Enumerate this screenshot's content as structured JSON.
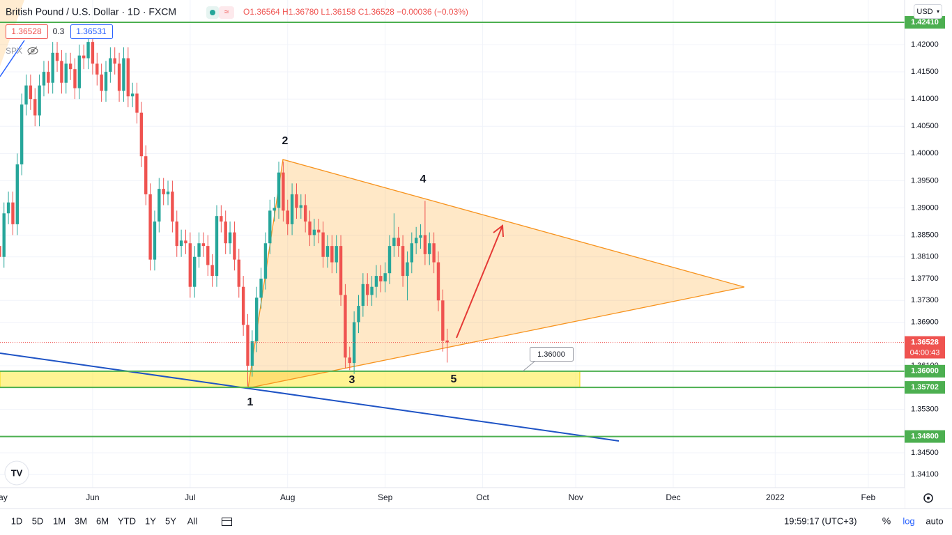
{
  "header": {
    "title": "British Pound / U.S. Dollar · 1D · FXCM",
    "ohlc": "O1.36564 H1.36780 L1.36158 C1.36528 −0.00036 (−0.03%)",
    "bid": "1.36528",
    "spread": "0.3",
    "ask": "1.36531",
    "indicator": "SPX",
    "currency": "USD"
  },
  "chart_data": {
    "type": "candlestick",
    "up_color": "#26a69a",
    "down_color": "#ef5350",
    "grid": true,
    "log_scale": false,
    "xlim": [
      0.1,
      204.2
    ],
    "xticks": [
      {
        "value": 0,
        "label": "May"
      },
      {
        "value": 21,
        "label": "Jun"
      },
      {
        "value": 43,
        "label": "Jul"
      },
      {
        "value": 65,
        "label": "Aug"
      },
      {
        "value": 87,
        "label": "Sep"
      },
      {
        "value": 109,
        "label": "Oct"
      },
      {
        "value": 130,
        "label": "Nov"
      },
      {
        "value": 152,
        "label": "Dec"
      },
      {
        "value": 175,
        "label": "2022"
      },
      {
        "value": 196,
        "label": "Feb"
      }
    ],
    "ylim": [
      1.3386,
      1.4282
    ],
    "yticks": [
      {
        "value": 1.42,
        "label": "1.42000"
      },
      {
        "value": 1.415,
        "label": "1.41500"
      },
      {
        "value": 1.41,
        "label": "1.41000"
      },
      {
        "value": 1.405,
        "label": "1.40500"
      },
      {
        "value": 1.4,
        "label": "1.40000"
      },
      {
        "value": 1.395,
        "label": "1.39500"
      },
      {
        "value": 1.39,
        "label": "1.39000"
      },
      {
        "value": 1.385,
        "label": "1.38500"
      },
      {
        "value": 1.381,
        "label": "1.38100"
      },
      {
        "value": 1.377,
        "label": "1.37700"
      },
      {
        "value": 1.373,
        "label": "1.37300"
      },
      {
        "value": 1.369,
        "label": "1.36900"
      },
      {
        "value": 1.361,
        "label": "1.36100"
      },
      {
        "value": 1.353,
        "label": "1.35300"
      },
      {
        "value": 1.345,
        "label": "1.34500"
      },
      {
        "value": 1.341,
        "label": "1.34100"
      }
    ],
    "candles": [
      [
        1.383,
        1.385,
        1.379,
        1.381
      ],
      [
        1.381,
        1.391,
        1.379,
        1.389
      ],
      [
        1.389,
        1.393,
        1.387,
        1.391
      ],
      [
        1.391,
        1.393,
        1.385,
        1.387
      ],
      [
        1.387,
        1.4,
        1.385,
        1.398
      ],
      [
        1.398,
        1.411,
        1.396,
        1.409
      ],
      [
        1.409,
        1.4145,
        1.407,
        1.4125
      ],
      [
        1.4125,
        1.4145,
        1.408,
        1.41
      ],
      [
        1.41,
        1.412,
        1.405,
        1.407
      ],
      [
        1.407,
        1.4145,
        1.405,
        1.4125
      ],
      [
        1.4125,
        1.417,
        1.4105,
        1.415
      ],
      [
        1.415,
        1.417,
        1.411,
        1.413
      ],
      [
        1.413,
        1.4205,
        1.411,
        1.4185
      ],
      [
        1.4185,
        1.4205,
        1.415,
        1.417
      ],
      [
        1.417,
        1.419,
        1.411,
        1.413
      ],
      [
        1.413,
        1.4185,
        1.411,
        1.4165
      ],
      [
        1.4165,
        1.4185,
        1.4135,
        1.4155
      ],
      [
        1.4155,
        1.4175,
        1.41,
        1.412
      ],
      [
        1.412,
        1.42,
        1.41,
        1.418
      ],
      [
        1.418,
        1.42,
        1.4155,
        1.4175
      ],
      [
        1.4175,
        1.422,
        1.4155,
        1.4205
      ],
      [
        1.4205,
        1.4225,
        1.4145,
        1.4165
      ],
      [
        1.4165,
        1.4185,
        1.4125,
        1.4145
      ],
      [
        1.4145,
        1.4165,
        1.4095,
        1.4115
      ],
      [
        1.4115,
        1.417,
        1.4095,
        1.415
      ],
      [
        1.415,
        1.4195,
        1.413,
        1.4175
      ],
      [
        1.4175,
        1.4195,
        1.4145,
        1.4165
      ],
      [
        1.4165,
        1.4185,
        1.4095,
        1.4115
      ],
      [
        1.4115,
        1.4195,
        1.4095,
        1.4175
      ],
      [
        1.4175,
        1.4195,
        1.4085,
        1.4105
      ],
      [
        1.4105,
        1.413,
        1.4085,
        1.411
      ],
      [
        1.411,
        1.413,
        1.4055,
        1.4075
      ],
      [
        1.4075,
        1.4095,
        1.3975,
        1.3995
      ],
      [
        1.3995,
        1.4015,
        1.3905,
        1.3925
      ],
      [
        1.3925,
        1.3945,
        1.3785,
        1.3805
      ],
      [
        1.3805,
        1.3895,
        1.3785,
        1.3875
      ],
      [
        1.3875,
        1.3955,
        1.3855,
        1.3935
      ],
      [
        1.3935,
        1.3955,
        1.3905,
        1.3925
      ],
      [
        1.3925,
        1.395,
        1.3905,
        1.393
      ],
      [
        1.393,
        1.395,
        1.3855,
        1.3875
      ],
      [
        1.3875,
        1.3895,
        1.381,
        1.383
      ],
      [
        1.383,
        1.386,
        1.381,
        1.384
      ],
      [
        1.384,
        1.386,
        1.3815,
        1.3835
      ],
      [
        1.3835,
        1.3855,
        1.3735,
        1.3755
      ],
      [
        1.3755,
        1.383,
        1.3735,
        1.381
      ],
      [
        1.381,
        1.3855,
        1.379,
        1.3835
      ],
      [
        1.3835,
        1.3855,
        1.381,
        1.383
      ],
      [
        1.383,
        1.385,
        1.3775,
        1.3795
      ],
      [
        1.3795,
        1.3815,
        1.3755,
        1.3775
      ],
      [
        1.3775,
        1.3905,
        1.3755,
        1.3885
      ],
      [
        1.3885,
        1.3905,
        1.3855,
        1.3875
      ],
      [
        1.3875,
        1.3895,
        1.3815,
        1.3835
      ],
      [
        1.3835,
        1.3875,
        1.3815,
        1.3855
      ],
      [
        1.3855,
        1.3875,
        1.3785,
        1.3805
      ],
      [
        1.3805,
        1.3825,
        1.3735,
        1.3755
      ],
      [
        1.3755,
        1.3775,
        1.3665,
        1.3685
      ],
      [
        1.3685,
        1.3705,
        1.3572,
        1.361
      ],
      [
        1.361,
        1.3675,
        1.359,
        1.3655
      ],
      [
        1.3655,
        1.3755,
        1.3635,
        1.3735
      ],
      [
        1.3735,
        1.379,
        1.3715,
        1.377
      ],
      [
        1.377,
        1.3855,
        1.375,
        1.3835
      ],
      [
        1.3835,
        1.3915,
        1.3815,
        1.3895
      ],
      [
        1.3895,
        1.392,
        1.3875,
        1.39
      ],
      [
        1.39,
        1.3985,
        1.388,
        1.3965
      ],
      [
        1.3965,
        1.3985,
        1.3875,
        1.3895
      ],
      [
        1.3895,
        1.3915,
        1.385,
        1.387
      ],
      [
        1.387,
        1.3945,
        1.385,
        1.3925
      ],
      [
        1.3925,
        1.3945,
        1.388,
        1.39
      ],
      [
        1.39,
        1.3925,
        1.388,
        1.3905
      ],
      [
        1.3905,
        1.3925,
        1.3855,
        1.3875
      ],
      [
        1.3875,
        1.3895,
        1.383,
        1.385
      ],
      [
        1.385,
        1.388,
        1.383,
        1.386
      ],
      [
        1.386,
        1.388,
        1.3835,
        1.3855
      ],
      [
        1.3855,
        1.3875,
        1.379,
        1.381
      ],
      [
        1.381,
        1.385,
        1.379,
        1.383
      ],
      [
        1.383,
        1.385,
        1.378,
        1.38
      ],
      [
        1.38,
        1.385,
        1.378,
        1.383
      ],
      [
        1.383,
        1.385,
        1.372,
        1.374
      ],
      [
        1.374,
        1.376,
        1.3605,
        1.3625
      ],
      [
        1.3625,
        1.3645,
        1.3602,
        1.3615
      ],
      [
        1.3615,
        1.371,
        1.3595,
        1.369
      ],
      [
        1.369,
        1.374,
        1.367,
        1.372
      ],
      [
        1.372,
        1.378,
        1.37,
        1.376
      ],
      [
        1.376,
        1.378,
        1.372,
        1.374
      ],
      [
        1.374,
        1.3775,
        1.372,
        1.3755
      ],
      [
        1.3755,
        1.3795,
        1.3735,
        1.3775
      ],
      [
        1.3775,
        1.3795,
        1.3745,
        1.3765
      ],
      [
        1.3765,
        1.38,
        1.3745,
        1.378
      ],
      [
        1.378,
        1.385,
        1.376,
        1.383
      ],
      [
        1.383,
        1.389,
        1.381,
        1.3845
      ],
      [
        1.3845,
        1.3865,
        1.381,
        1.383
      ],
      [
        1.383,
        1.385,
        1.3755,
        1.3775
      ],
      [
        1.3775,
        1.382,
        1.373,
        1.38
      ],
      [
        1.38,
        1.3855,
        1.378,
        1.3835
      ],
      [
        1.3835,
        1.3865,
        1.3815,
        1.3845
      ],
      [
        1.3845,
        1.387,
        1.3825,
        1.385
      ],
      [
        1.385,
        1.3913,
        1.3795,
        1.3815
      ],
      [
        1.3815,
        1.3855,
        1.3795,
        1.3835
      ],
      [
        1.3835,
        1.3855,
        1.378,
        1.38
      ],
      [
        1.38,
        1.382,
        1.371,
        1.373
      ],
      [
        1.373,
        1.375,
        1.3636,
        1.3656
      ],
      [
        1.36564,
        1.3678,
        1.36158,
        1.36528
      ]
    ],
    "levels": [
      {
        "value": 1.4241,
        "label": "1.42410"
      },
      {
        "value": 1.36,
        "label": "1.36000"
      },
      {
        "value": 1.35702,
        "label": "1.35702"
      },
      {
        "value": 1.348,
        "label": "1.34800"
      }
    ],
    "price_line": {
      "value": 1.36528,
      "label": "1.36528",
      "countdown": "04:00:43"
    },
    "callout": "1.36000",
    "waves": [
      "1",
      "2",
      "3",
      "4",
      "5"
    ]
  },
  "toolbar": {
    "ranges": [
      "1D",
      "5D",
      "1M",
      "3M",
      "6M",
      "YTD",
      "1Y",
      "5Y",
      "All"
    ],
    "clock": "19:59:17 (UTC+3)",
    "percent": "%",
    "log": "log",
    "auto": "auto"
  }
}
